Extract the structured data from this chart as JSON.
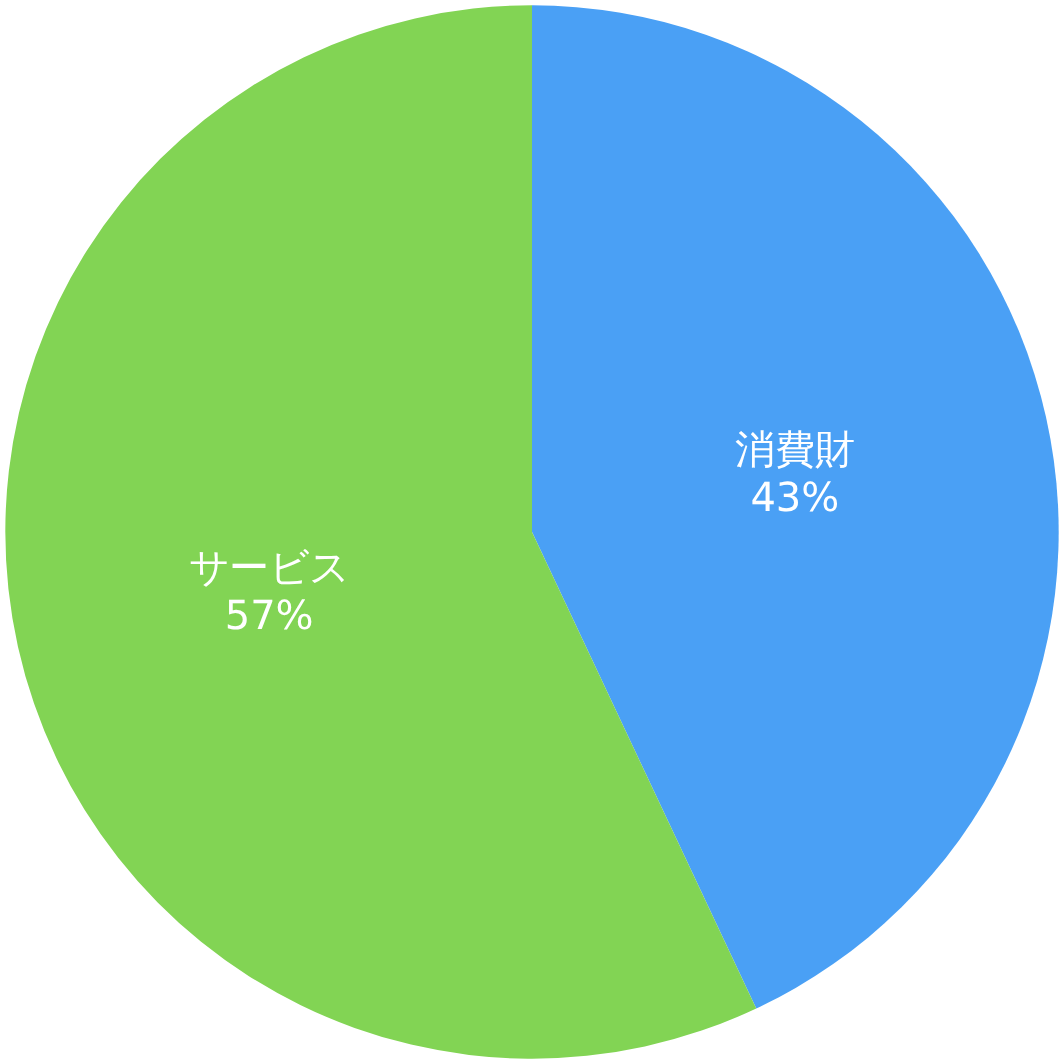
{
  "chart_data": {
    "type": "pie",
    "categories": [
      "消費財",
      "サービス"
    ],
    "values": [
      43,
      57
    ],
    "colors": [
      "#4aa0f5",
      "#82d454"
    ],
    "value_labels": [
      "43%",
      "57%"
    ],
    "legend": false
  }
}
